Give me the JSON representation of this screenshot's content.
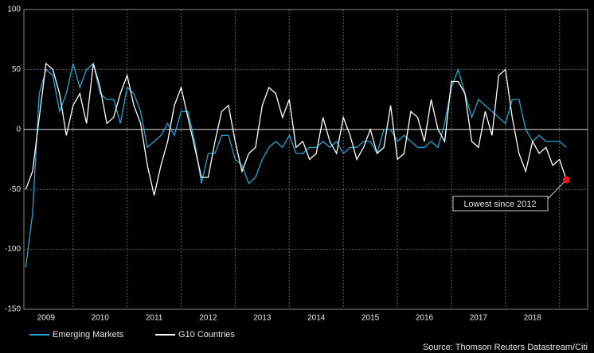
{
  "chart_data": {
    "type": "line",
    "x": [
      2008.625,
      2008.75,
      2008.875,
      2009,
      2009.125,
      2009.25,
      2009.375,
      2009.5,
      2009.625,
      2009.75,
      2009.875,
      2010,
      2010.125,
      2010.25,
      2010.375,
      2010.5,
      2010.625,
      2010.75,
      2010.875,
      2011,
      2011.125,
      2011.25,
      2011.375,
      2011.5,
      2011.625,
      2011.75,
      2011.875,
      2012,
      2012.125,
      2012.25,
      2012.375,
      2012.5,
      2012.625,
      2012.75,
      2012.875,
      2013,
      2013.125,
      2013.25,
      2013.375,
      2013.5,
      2013.625,
      2013.75,
      2013.875,
      2014,
      2014.125,
      2014.25,
      2014.375,
      2014.5,
      2014.625,
      2014.75,
      2014.875,
      2015,
      2015.125,
      2015.25,
      2015.375,
      2015.5,
      2015.625,
      2015.75,
      2015.875,
      2016,
      2016.125,
      2016.25,
      2016.375,
      2016.5,
      2016.625,
      2016.75,
      2016.875,
      2017,
      2017.125,
      2017.25,
      2017.375,
      2017.5,
      2017.625,
      2017.75,
      2017.875,
      2018,
      2018.125,
      2018.25,
      2018.375,
      2018.5,
      2018.625
    ],
    "series": [
      {
        "name": "Emerging Markets",
        "color": "#1ea7d6",
        "values": [
          -115,
          -70,
          30,
          50,
          45,
          15,
          30,
          55,
          35,
          50,
          55,
          30,
          25,
          25,
          5,
          35,
          30,
          15,
          -15,
          -10,
          -5,
          5,
          -5,
          15,
          15,
          -10,
          -45,
          -20,
          -20,
          -5,
          -5,
          -25,
          -30,
          -45,
          -40,
          -25,
          -15,
          -10,
          -15,
          -5,
          -20,
          -20,
          -15,
          -15,
          -10,
          -15,
          -10,
          -20,
          -15,
          -15,
          -10,
          -10,
          -20,
          0,
          0,
          -10,
          -5,
          -10,
          -15,
          -15,
          -10,
          -15,
          5,
          35,
          50,
          30,
          10,
          25,
          20,
          15,
          10,
          5,
          25,
          25,
          0,
          -10,
          -5,
          -10,
          -10,
          -10,
          -15
        ]
      },
      {
        "name": "G10 Countries",
        "color": "#ffffff",
        "values": [
          -50,
          -35,
          10,
          55,
          50,
          30,
          -5,
          20,
          30,
          5,
          55,
          35,
          5,
          10,
          30,
          45,
          20,
          5,
          -30,
          -55,
          -30,
          -10,
          20,
          35,
          10,
          -15,
          -40,
          -40,
          -10,
          15,
          20,
          -10,
          -35,
          -20,
          -15,
          20,
          35,
          30,
          10,
          25,
          -15,
          -10,
          -25,
          -20,
          10,
          -10,
          -20,
          10,
          -5,
          -25,
          -15,
          0,
          -20,
          -15,
          20,
          -25,
          -20,
          15,
          10,
          -10,
          25,
          0,
          -10,
          40,
          40,
          30,
          -10,
          -15,
          15,
          -5,
          45,
          50,
          10,
          -20,
          -35,
          -10,
          -20,
          -15,
          -30,
          -25,
          -42
        ]
      }
    ],
    "xlim": [
      2008.59,
      2019.02
    ],
    "xticks": [
      2009,
      2010,
      2011,
      2012,
      2013,
      2014,
      2015,
      2016,
      2017,
      2018
    ],
    "ylim": [
      -150,
      100
    ],
    "yticks": [
      100,
      50,
      0,
      -50,
      -100,
      -150
    ],
    "grid": true,
    "annotation": "Lowest since 2012",
    "source": "Source: Thomson Reuters Datastream/Citi"
  }
}
